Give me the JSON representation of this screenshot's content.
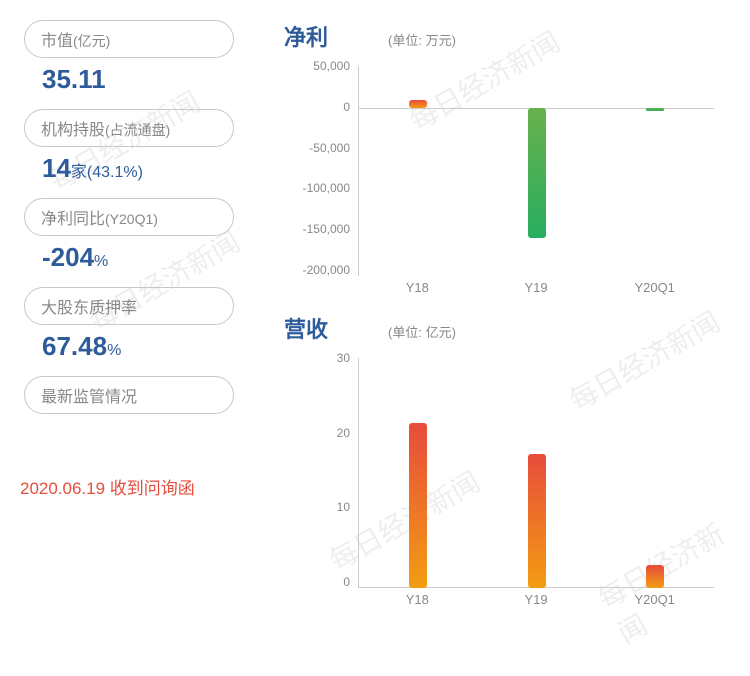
{
  "watermark_text": "每日经济新闻",
  "metrics": [
    {
      "label": "市值",
      "sub": "(亿元)",
      "value": "35.11",
      "suffix": ""
    },
    {
      "label": "机构持股",
      "sub": "(占流通盘)",
      "value": "14",
      "suffix": "家(43.1%)"
    },
    {
      "label": "净利同比",
      "sub": "(Y20Q1)",
      "value": "-204",
      "suffix": "%"
    },
    {
      "label": "大股东质押率",
      "sub": "",
      "value": "67.48",
      "suffix": "%"
    }
  ],
  "last_pill": "最新监管情况",
  "footer": "2020.06.19 收到问询函",
  "chart1": {
    "title": "净利",
    "unit": "(单位: 万元)",
    "type": "bar",
    "categories": [
      "Y18",
      "Y19",
      "Y20Q1"
    ],
    "values": [
      10000,
      -155000,
      -3000
    ],
    "ylim": [
      -200000,
      50000
    ],
    "ytick_step": 50000,
    "ytick_labels": [
      "50,000",
      "0",
      "-50,000",
      "-100,000",
      "-150,000",
      "-200,000"
    ],
    "bar_gradient_pos": [
      "#e74c3c",
      "#f39c12"
    ],
    "bar_gradient_neg": [
      "#6ab04c",
      "#27ae60"
    ],
    "grid_color": "#cccccc"
  },
  "chart2": {
    "title": "营收",
    "unit": "(单位: 亿元)",
    "type": "bar",
    "categories": [
      "Y18",
      "Y19",
      "Y20Q1"
    ],
    "values": [
      21.5,
      17.5,
      3
    ],
    "ylim": [
      0,
      30
    ],
    "ytick_step": 10,
    "ytick_labels": [
      "30",
      "20",
      "10",
      "0"
    ],
    "bar_gradient": [
      "#e74c3c",
      "#f39c12"
    ],
    "grid_color": "#cccccc"
  },
  "colors": {
    "text_gray": "#888888",
    "metric_blue": "#2e5c9a",
    "footer_red": "#e74c3c",
    "border_gray": "#c8c8c8",
    "bg": "#ffffff"
  },
  "font_family": "Microsoft YaHei"
}
